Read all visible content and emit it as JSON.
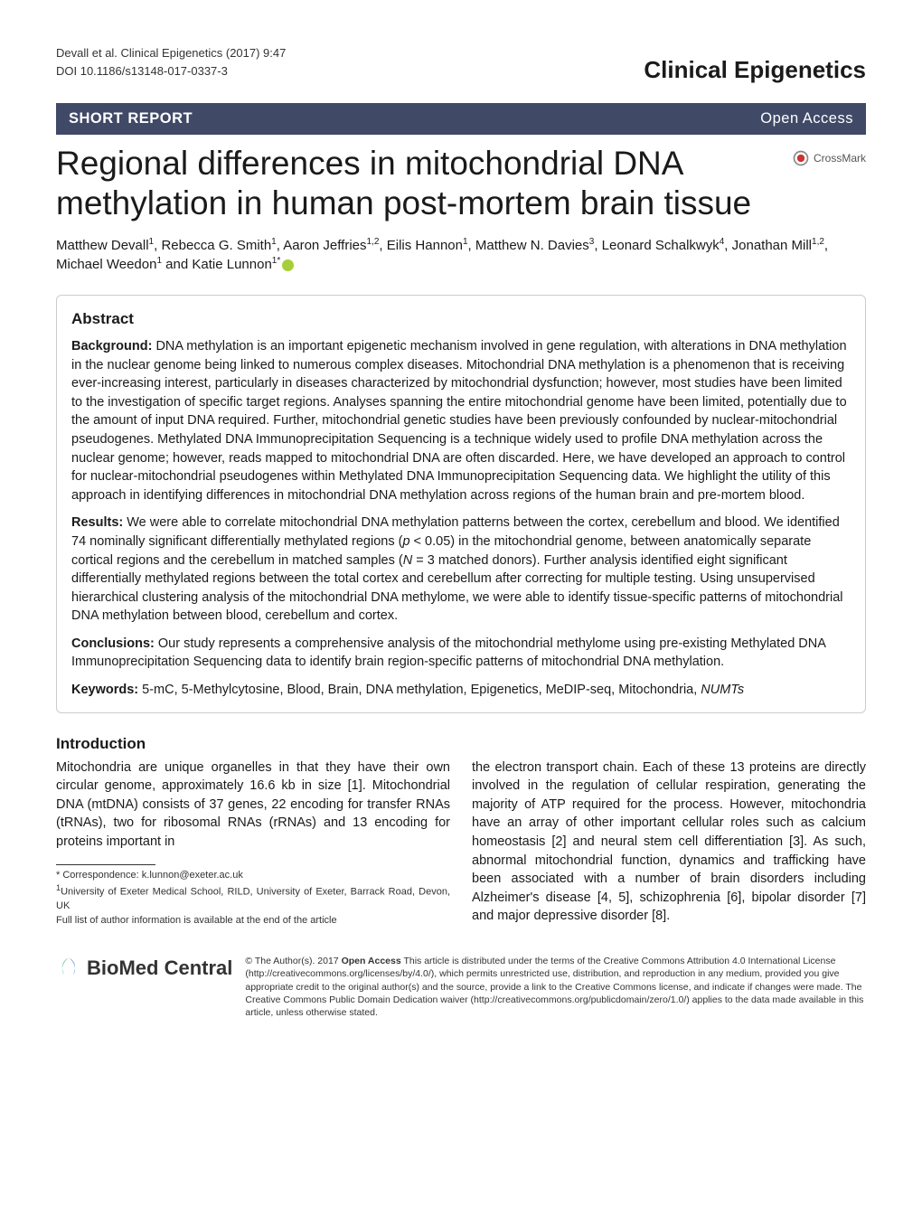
{
  "header": {
    "running": "Devall et al. Clinical Epigenetics  (2017) 9:47",
    "doi": "DOI 10.1186/s13148-017-0337-3",
    "journal": "Clinical Epigenetics"
  },
  "bar": {
    "type": "SHORT REPORT",
    "access": "Open Access"
  },
  "title": "Regional differences in mitochondrial DNA methylation in human post-mortem brain tissue",
  "crossmark": "CrossMark",
  "authors_html": "Matthew Devall<sup>1</sup>, Rebecca G. Smith<sup>1</sup>, Aaron Jeffries<sup>1,2</sup>, Eilis Hannon<sup>1</sup>, Matthew N. Davies<sup>3</sup>, Leonard Schalkwyk<sup>4</sup>, Jonathan Mill<sup>1,2</sup>, Michael Weedon<sup>1</sup> and Katie Lunnon<sup>1*</sup>",
  "abstract": {
    "heading": "Abstract",
    "background_label": "Background:",
    "background": " DNA methylation is an important epigenetic mechanism involved in gene regulation, with alterations in DNA methylation in the nuclear genome being linked to numerous complex diseases. Mitochondrial DNA methylation is a phenomenon that is receiving ever-increasing interest, particularly in diseases characterized by mitochondrial dysfunction; however, most studies have been limited to the investigation of specific target regions. Analyses spanning the entire mitochondrial genome have been limited, potentially due to the amount of input DNA required. Further, mitochondrial genetic studies have been previously confounded by nuclear-mitochondrial pseudogenes. Methylated DNA Immunoprecipitation Sequencing is a technique widely used to profile DNA methylation across the nuclear genome; however, reads mapped to mitochondrial DNA are often discarded. Here, we have developed an approach to control for nuclear-mitochondrial pseudogenes within Methylated DNA Immunoprecipitation Sequencing data. We highlight the utility of this approach in identifying differences in mitochondrial DNA methylation across regions of the human brain and pre-mortem blood.",
    "results_label": "Results:",
    "results": " We were able to correlate mitochondrial DNA methylation patterns between the cortex, cerebellum and blood. We identified 74 nominally significant differentially methylated regions (p < 0.05) in the mitochondrial genome, between anatomically separate cortical regions and the cerebellum in matched samples (N = 3 matched donors). Further analysis identified eight significant differentially methylated regions between the total cortex and cerebellum after correcting for multiple testing. Using unsupervised hierarchical clustering analysis of the mitochondrial DNA methylome, we were able to identify tissue-specific patterns of mitochondrial DNA methylation between blood, cerebellum and cortex.",
    "conclusions_label": "Conclusions:",
    "conclusions": " Our study represents a comprehensive analysis of the mitochondrial methylome using pre-existing Methylated DNA Immunoprecipitation Sequencing data to identify brain region-specific patterns of mitochondrial DNA methylation.",
    "keywords_label": "Keywords:",
    "keywords": " 5-mC, 5-Methylcytosine, Blood, Brain, DNA methylation, Epigenetics, MeDIP-seq, Mitochondria, NUMTs"
  },
  "intro": {
    "heading": "Introduction",
    "p1": "Mitochondria are unique organelles in that they have their own circular genome, approximately 16.6 kb in size [1]. Mitochondrial DNA (mtDNA) consists of 37 genes, 22 encoding for transfer RNAs (tRNAs), two for ribosomal RNAs (rRNAs) and 13 encoding for proteins important in",
    "p2": "the electron transport chain. Each of these 13 proteins are directly involved in the regulation of cellular respiration, generating the majority of ATP required for the process. However, mitochondria have an array of other important cellular roles such as calcium homeostasis [2] and neural stem cell differentiation [3]. As such, abnormal mitochondrial function, dynamics and trafficking have been associated with a number of brain disorders including Alzheimer's disease [4, 5], schizophrenia [6], bipolar disorder [7] and major depressive disorder [8]."
  },
  "footnote": {
    "corr": "* Correspondence: k.lunnon@exeter.ac.uk",
    "affil": "1University of Exeter Medical School, RILD, University of Exeter, Barrack Road, Devon, UK",
    "full": "Full list of author information is available at the end of the article"
  },
  "license": {
    "bmc": "BioMed Central",
    "text": "© The Author(s). 2017 Open Access This article is distributed under the terms of the Creative Commons Attribution 4.0 International License (http://creativecommons.org/licenses/by/4.0/), which permits unrestricted use, distribution, and reproduction in any medium, provided you give appropriate credit to the original author(s) and the source, provide a link to the Creative Commons license, and indicate if changes were made. The Creative Commons Public Domain Dedication waiver (http://creativecommons.org/publicdomain/zero/1.0/) applies to the data made available in this article, unless otherwise stated."
  },
  "colors": {
    "bar_bg": "#404966",
    "orcid": "#a6ce39"
  }
}
